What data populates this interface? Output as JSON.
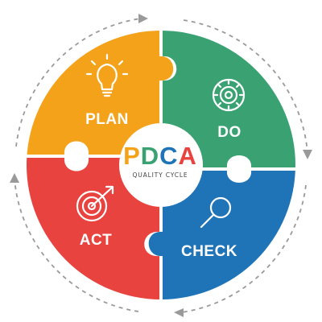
{
  "center": {
    "title_letters": [
      "P",
      "D",
      "C",
      "A"
    ],
    "subtitle": "QUALITY CYCLE"
  },
  "quadrants": [
    {
      "id": "plan",
      "label": "PLAN",
      "icon": "lightbulb-icon",
      "color": "#F5A21B"
    },
    {
      "id": "do",
      "label": "DO",
      "icon": "gear-cycle-icon",
      "color": "#3AA272"
    },
    {
      "id": "check",
      "label": "CHECK",
      "icon": "magnifier-icon",
      "color": "#1F74B8"
    },
    {
      "id": "act",
      "label": "ACT",
      "icon": "target-icon",
      "color": "#E8433F"
    }
  ],
  "letter_colors": [
    "#F5A21B",
    "#3AA272",
    "#1F74B8",
    "#E8433F"
  ]
}
